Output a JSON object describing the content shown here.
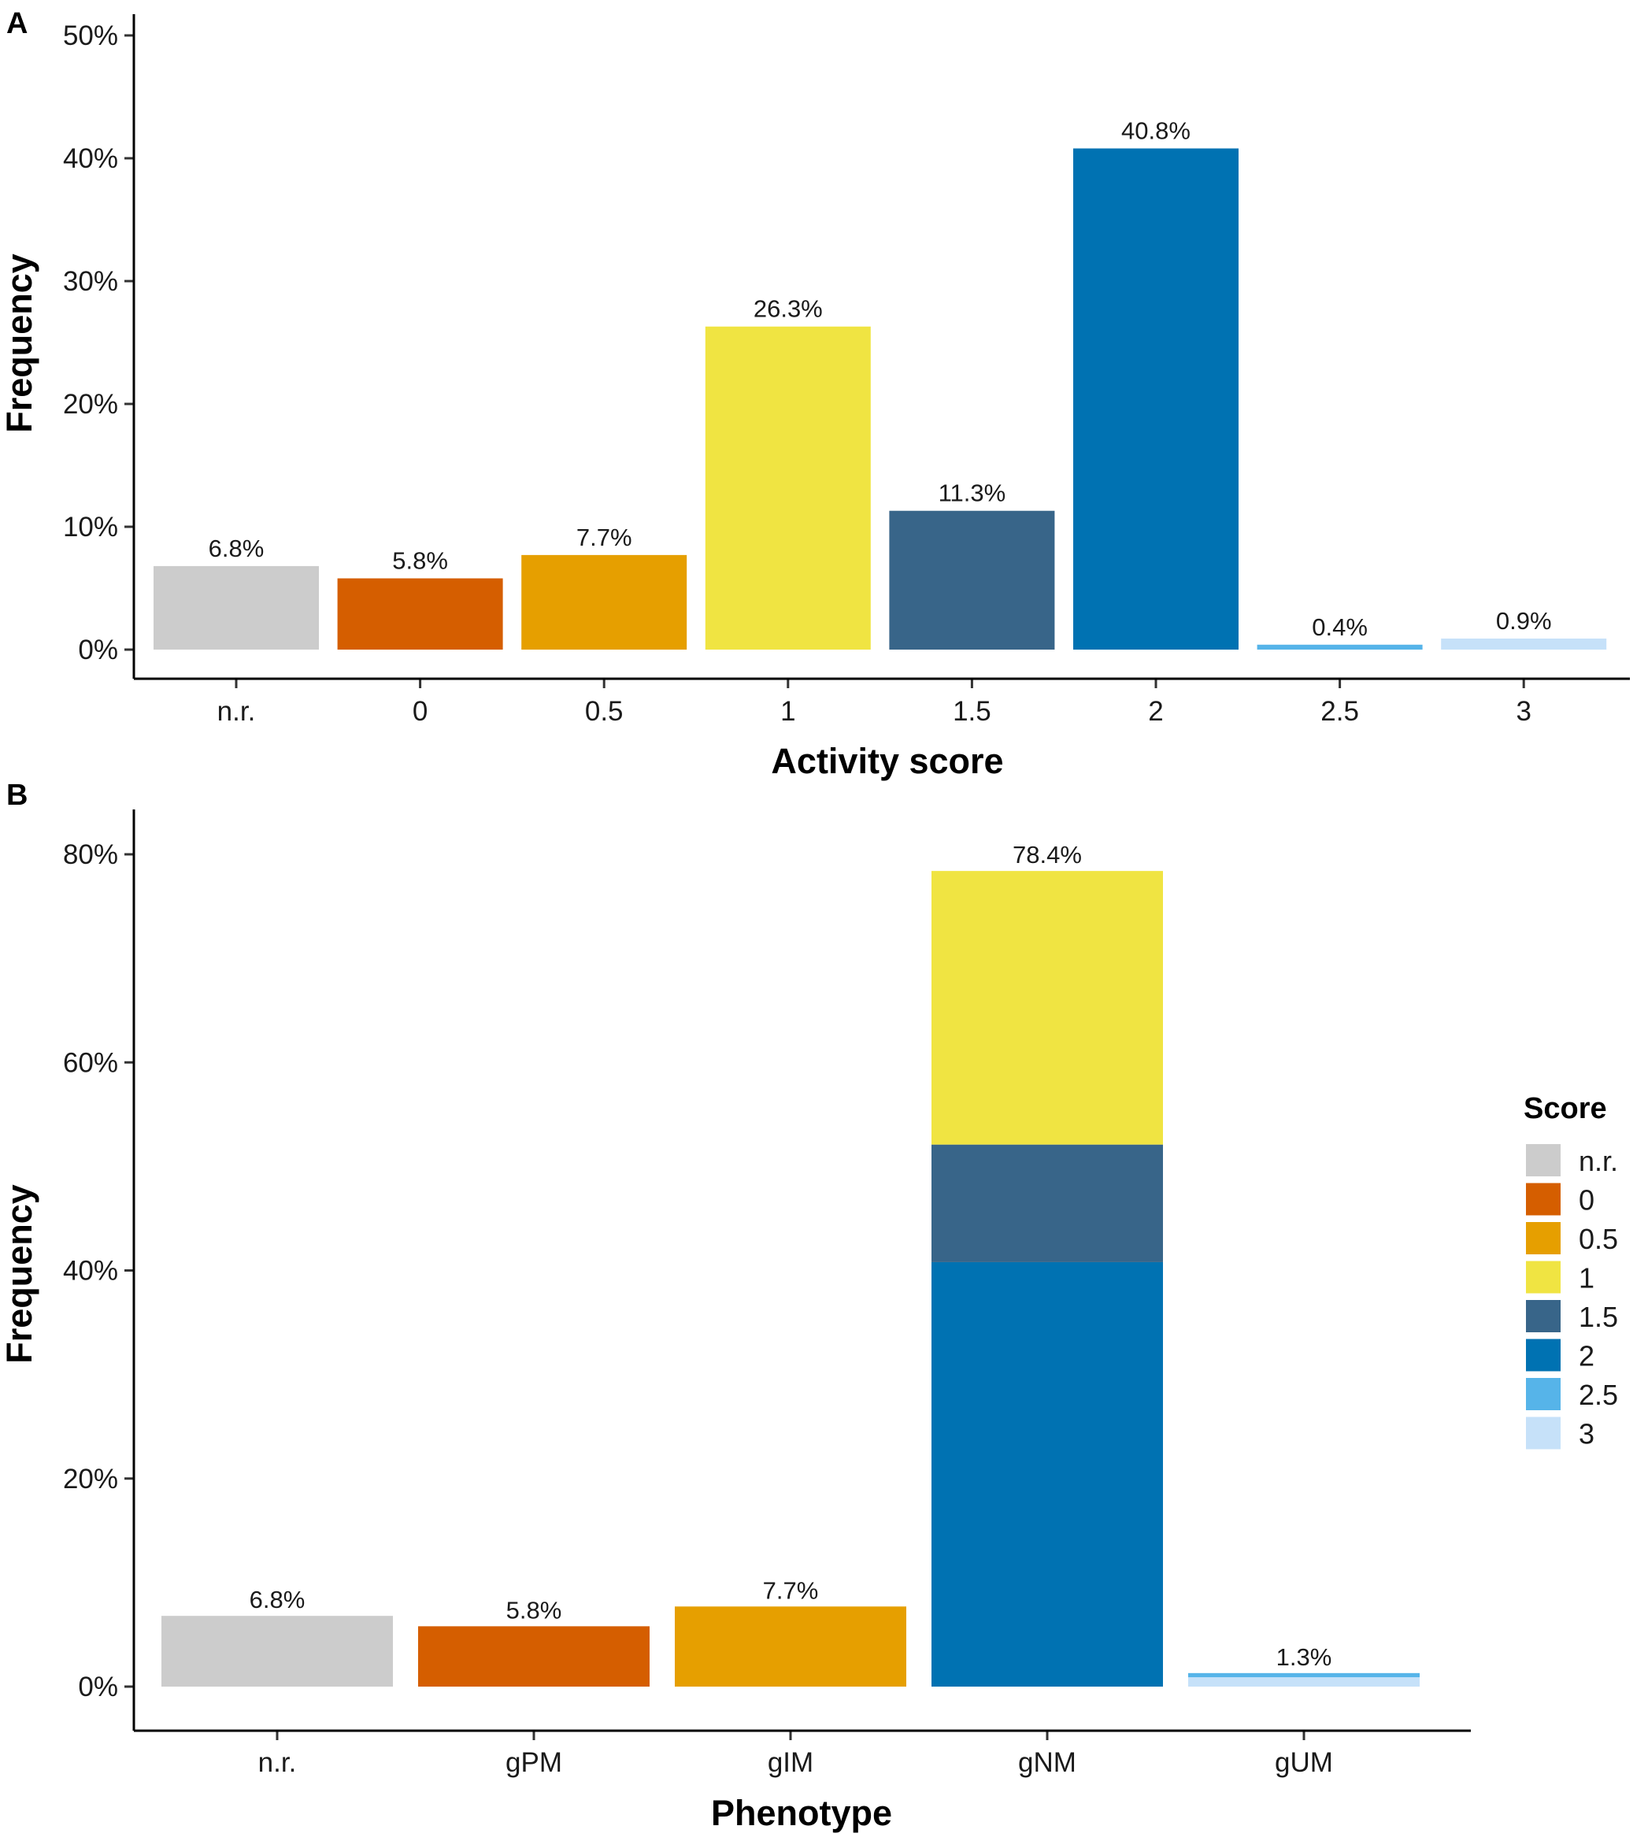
{
  "colors": {
    "n.r.": "#CCCCCC",
    "0": "#D55E00",
    "0.5": "#E69F00",
    "1": "#F0E442",
    "1.5": "#386589",
    "2": "#0072B2",
    "2.5": "#56B4E9",
    "3": "#C6E1F9"
  },
  "chart_data": [
    {
      "panel": "A",
      "type": "bar",
      "xlabel": "Activity score",
      "ylabel": "Frequency",
      "ylim": [
        0,
        50
      ],
      "yticks": [
        0,
        10,
        20,
        30,
        40,
        50
      ],
      "ytick_labels": [
        "0%",
        "10%",
        "20%",
        "30%",
        "40%",
        "50%"
      ],
      "categories": [
        "n.r.",
        "0",
        "0.5",
        "1",
        "1.5",
        "2",
        "2.5",
        "3"
      ],
      "values": [
        6.8,
        5.8,
        7.7,
        26.3,
        11.3,
        40.8,
        0.4,
        0.9
      ],
      "labels": [
        "6.8%",
        "5.8%",
        "7.7%",
        "26.3%",
        "11.3%",
        "40.8%",
        "0.4%",
        "0.9%"
      ],
      "fill_keys": [
        "n.r.",
        "0",
        "0.5",
        "1",
        "1.5",
        "2",
        "2.5",
        "3"
      ]
    },
    {
      "panel": "B",
      "type": "bar",
      "stacked": true,
      "xlabel": "Phenotype",
      "ylabel": "Frequency",
      "ylim": [
        0,
        80
      ],
      "yticks": [
        0,
        20,
        40,
        60,
        80
      ],
      "ytick_labels": [
        "0%",
        "20%",
        "40%",
        "60%",
        "80%"
      ],
      "categories": [
        "n.r.",
        "gPM",
        "gIM",
        "gNM",
        "gUM"
      ],
      "stacks": [
        [
          {
            "score": "n.r.",
            "value": 6.8
          }
        ],
        [
          {
            "score": "0",
            "value": 5.8
          }
        ],
        [
          {
            "score": "0.5",
            "value": 7.7
          }
        ],
        [
          {
            "score": "2",
            "value": 40.8
          },
          {
            "score": "1.5",
            "value": 11.3
          },
          {
            "score": "1",
            "value": 26.3
          }
        ],
        [
          {
            "score": "3",
            "value": 0.9
          },
          {
            "score": "2.5",
            "value": 0.4
          }
        ]
      ],
      "labels": [
        "6.8%",
        "5.8%",
        "7.7%",
        "78.4%",
        "1.3%"
      ],
      "legend": {
        "title": "Score",
        "entries": [
          "n.r.",
          "0",
          "0.5",
          "1",
          "1.5",
          "2",
          "2.5",
          "3"
        ]
      }
    }
  ]
}
